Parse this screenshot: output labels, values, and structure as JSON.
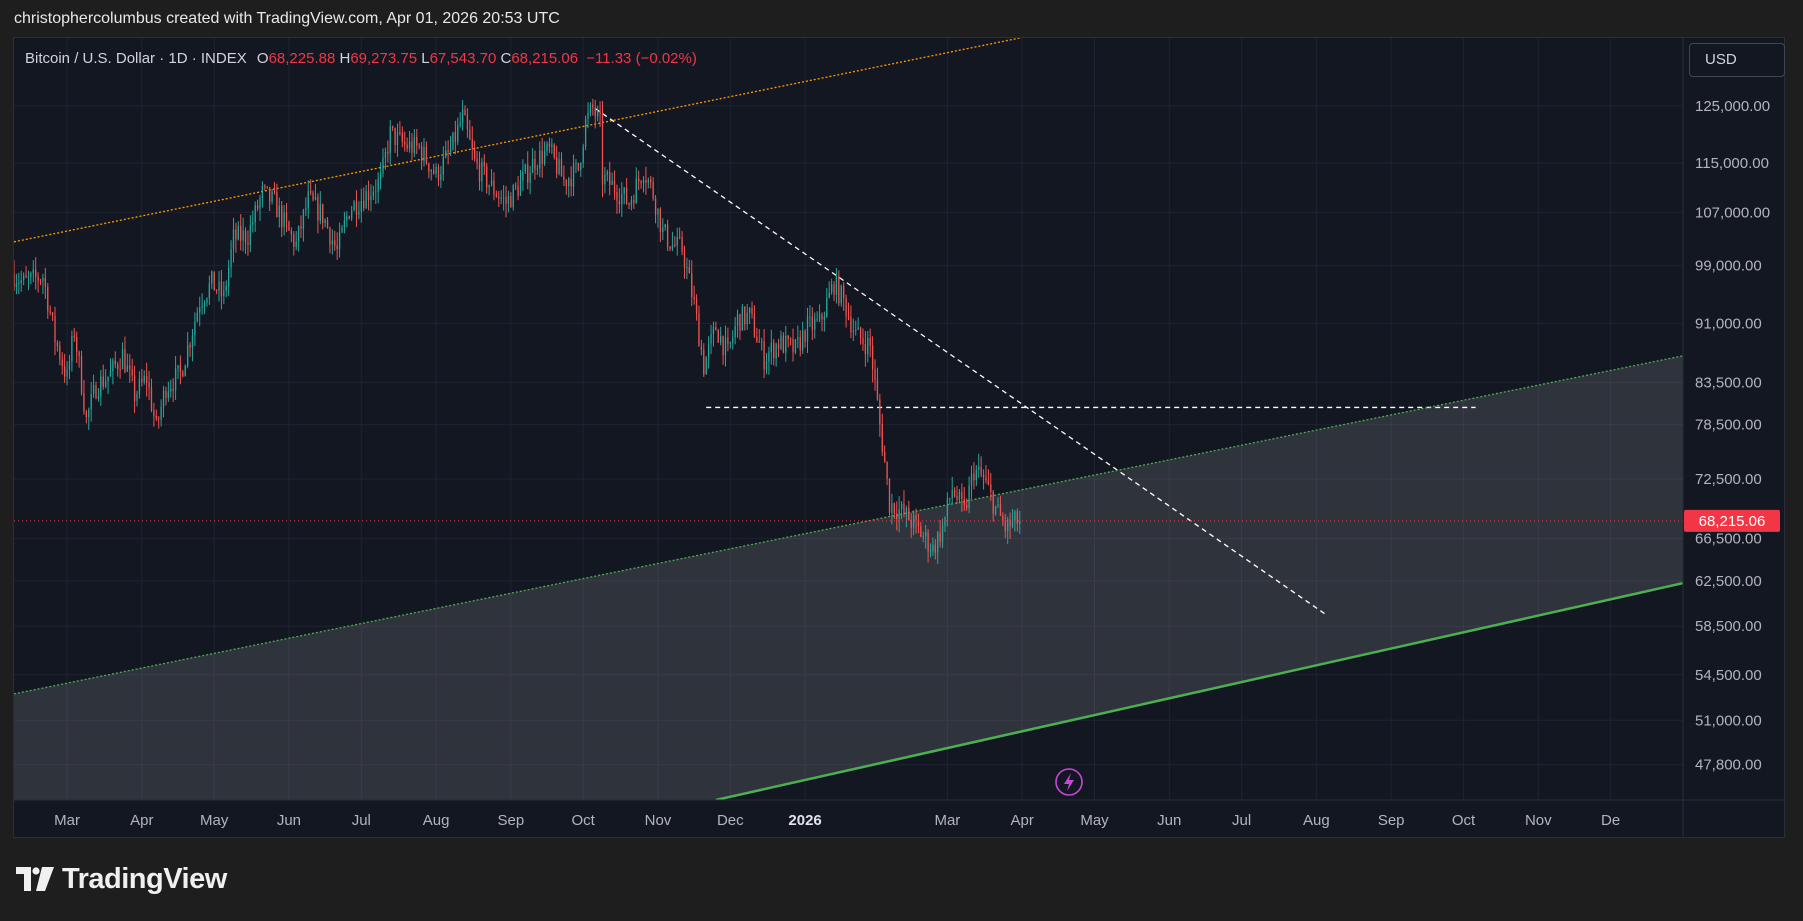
{
  "header": {
    "text": "christophercolumbus created with TradingView.com, Apr 01, 2026 20:53 UTC"
  },
  "legend": {
    "symbol": "Bitcoin / U.S. Dollar · 1D · INDEX",
    "open_label": "O",
    "open": "68,225.88",
    "high_label": "H",
    "high": "69,273.75",
    "low_label": "L",
    "low": "67,543.70",
    "close_label": "C",
    "close": "68,215.06",
    "change": "−11.33 (−0.02%)"
  },
  "currency": "USD",
  "footer": {
    "brand": "TradingView"
  },
  "colors": {
    "background": "#131722",
    "up": "#26a69a",
    "down": "#ef5350",
    "price_tag": "#f23645",
    "channel_green": "#4caf50",
    "upper_line": "#ff9800"
  },
  "chart_data": {
    "type": "candlestick",
    "title": "Bitcoin / U.S. Dollar · 1D · INDEX",
    "y_scale": "log",
    "y_range": [
      45400,
      138000
    ],
    "x_range": [
      "2025-02-07",
      "2026-12-31"
    ],
    "y_ticks": [
      {
        "value": 125000,
        "label": "125,000.00"
      },
      {
        "value": 115000,
        "label": "115,000.00"
      },
      {
        "value": 107000,
        "label": "107,000.00"
      },
      {
        "value": 99000,
        "label": "99,000.00"
      },
      {
        "value": 91000,
        "label": "91,000.00"
      },
      {
        "value": 83500,
        "label": "83,500.00"
      },
      {
        "value": 78500,
        "label": "78,500.00"
      },
      {
        "value": 72500,
        "label": "72,500.00"
      },
      {
        "value": 66500,
        "label": "66,500.00"
      },
      {
        "value": 62500,
        "label": "62,500.00"
      },
      {
        "value": 58500,
        "label": "58,500.00"
      },
      {
        "value": 54500,
        "label": "54,500.00"
      },
      {
        "value": 51000,
        "label": "51,000.00"
      },
      {
        "value": 47800,
        "label": "47,800.00"
      }
    ],
    "x_ticks": [
      {
        "date": "2025-03-01",
        "label": "Mar"
      },
      {
        "date": "2025-04-01",
        "label": "Apr"
      },
      {
        "date": "2025-05-01",
        "label": "May"
      },
      {
        "date": "2025-06-01",
        "label": "Jun"
      },
      {
        "date": "2025-07-01",
        "label": "Jul"
      },
      {
        "date": "2025-08-01",
        "label": "Aug"
      },
      {
        "date": "2025-09-01",
        "label": "Sep"
      },
      {
        "date": "2025-10-01",
        "label": "Oct"
      },
      {
        "date": "2025-11-01",
        "label": "Nov"
      },
      {
        "date": "2025-12-01",
        "label": "Dec"
      },
      {
        "date": "2026-01-01",
        "label": "2026",
        "bold": true
      },
      {
        "date": "2026-03-01",
        "label": "Mar"
      },
      {
        "date": "2026-04-01",
        "label": "Apr"
      },
      {
        "date": "2026-05-01",
        "label": "May"
      },
      {
        "date": "2026-06-01",
        "label": "Jun"
      },
      {
        "date": "2026-07-01",
        "label": "Jul"
      },
      {
        "date": "2026-08-01",
        "label": "Aug"
      },
      {
        "date": "2026-09-01",
        "label": "Sep"
      },
      {
        "date": "2026-10-01",
        "label": "Oct"
      },
      {
        "date": "2026-11-01",
        "label": "Nov"
      },
      {
        "date": "2026-12-01",
        "label": "De"
      }
    ],
    "last_price": {
      "value": 68215.06,
      "label": "68,215.06"
    },
    "price_path": [
      [
        "2025-02-07",
        98000
      ],
      [
        "2025-02-12",
        96500
      ],
      [
        "2025-02-20",
        97500
      ],
      [
        "2025-02-25",
        89000
      ],
      [
        "2025-03-02",
        84000
      ],
      [
        "2025-03-05",
        90000
      ],
      [
        "2025-03-10",
        79000
      ],
      [
        "2025-03-14",
        83000
      ],
      [
        "2025-03-20",
        84500
      ],
      [
        "2025-03-25",
        87000
      ],
      [
        "2025-03-30",
        82000
      ],
      [
        "2025-04-04",
        84000
      ],
      [
        "2025-04-08",
        78000
      ],
      [
        "2025-04-12",
        83000
      ],
      [
        "2025-04-18",
        84500
      ],
      [
        "2025-04-22",
        89000
      ],
      [
        "2025-04-26",
        94000
      ],
      [
        "2025-05-01",
        96500
      ],
      [
        "2025-05-06",
        94500
      ],
      [
        "2025-05-10",
        103000
      ],
      [
        "2025-05-16",
        103500
      ],
      [
        "2025-05-22",
        110000
      ],
      [
        "2025-05-27",
        108500
      ],
      [
        "2025-06-01",
        104500
      ],
      [
        "2025-06-05",
        102000
      ],
      [
        "2025-06-10",
        109000
      ],
      [
        "2025-06-16",
        106500
      ],
      [
        "2025-06-22",
        101000
      ],
      [
        "2025-06-27",
        107500
      ],
      [
        "2025-07-03",
        109500
      ],
      [
        "2025-07-10",
        112000
      ],
      [
        "2025-07-14",
        120000
      ],
      [
        "2025-07-20",
        118000
      ],
      [
        "2025-07-26",
        117500
      ],
      [
        "2025-08-02",
        113000
      ],
      [
        "2025-08-08",
        117000
      ],
      [
        "2025-08-13",
        123000
      ],
      [
        "2025-08-18",
        115000
      ],
      [
        "2025-08-25",
        111000
      ],
      [
        "2025-08-31",
        108500
      ],
      [
        "2025-09-05",
        111000
      ],
      [
        "2025-09-12",
        115500
      ],
      [
        "2025-09-18",
        117000
      ],
      [
        "2025-09-24",
        112000
      ],
      [
        "2025-09-30",
        114000
      ],
      [
        "2025-10-03",
        122000
      ],
      [
        "2025-10-06",
        124500
      ],
      [
        "2025-10-09",
        121500
      ],
      [
        "2025-10-10",
        112500
      ],
      [
        "2025-10-15",
        111000
      ],
      [
        "2025-10-21",
        108500
      ],
      [
        "2025-10-27",
        114000
      ],
      [
        "2025-10-31",
        110000
      ],
      [
        "2025-11-04",
        104000
      ],
      [
        "2025-11-08",
        102000
      ],
      [
        "2025-11-12",
        101500
      ],
      [
        "2025-11-17",
        93500
      ],
      [
        "2025-11-21",
        85500
      ],
      [
        "2025-11-26",
        90500
      ],
      [
        "2025-12-01",
        87000
      ],
      [
        "2025-12-05",
        91500
      ],
      [
        "2025-12-10",
        92000
      ],
      [
        "2025-12-16",
        86500
      ],
      [
        "2025-12-22",
        88500
      ],
      [
        "2025-12-29",
        87500
      ],
      [
        "2026-01-03",
        90500
      ],
      [
        "2026-01-08",
        91000
      ],
      [
        "2026-01-14",
        96500
      ],
      [
        "2026-01-18",
        94000
      ],
      [
        "2026-01-23",
        89500
      ],
      [
        "2026-01-29",
        88000
      ],
      [
        "2026-02-02",
        78500
      ],
      [
        "2026-02-06",
        70000
      ],
      [
        "2026-02-09",
        69500
      ],
      [
        "2026-02-14",
        68500
      ],
      [
        "2026-02-19",
        67000
      ],
      [
        "2026-02-24",
        65500
      ],
      [
        "2026-02-28",
        67500
      ],
      [
        "2026-03-04",
        71500
      ],
      [
        "2026-03-09",
        69000
      ],
      [
        "2026-03-13",
        73500
      ],
      [
        "2026-03-17",
        72500
      ],
      [
        "2026-03-22",
        69500
      ],
      [
        "2026-03-26",
        67500
      ],
      [
        "2026-03-31",
        68215
      ]
    ],
    "drawings": [
      {
        "kind": "trendline",
        "style": "dotted",
        "color": "#ff9800",
        "from": [
          "2025-02-07",
          102500
        ],
        "to": [
          "2026-03-31",
          138000
        ]
      },
      {
        "kind": "trendline",
        "style": "dashed",
        "color": "#ffffff",
        "from": [
          "2025-10-06",
          124500
        ],
        "to": [
          "2026-08-05",
          59500
        ]
      },
      {
        "kind": "horizontal",
        "style": "dashed",
        "color": "#ffffff",
        "from": [
          "2025-11-21",
          80500
        ],
        "to": [
          "2026-10-06",
          80500
        ]
      },
      {
        "kind": "channel_upper",
        "style": "dotted",
        "color": "#4caf50",
        "from": [
          "2025-02-07",
          53000
        ],
        "to": [
          "2026-12-31",
          86800
        ]
      },
      {
        "kind": "channel_lower",
        "style": "solid",
        "color": "#4caf50",
        "from": [
          "2025-11-25",
          45400
        ],
        "to": [
          "2026-12-31",
          62300
        ]
      }
    ]
  }
}
